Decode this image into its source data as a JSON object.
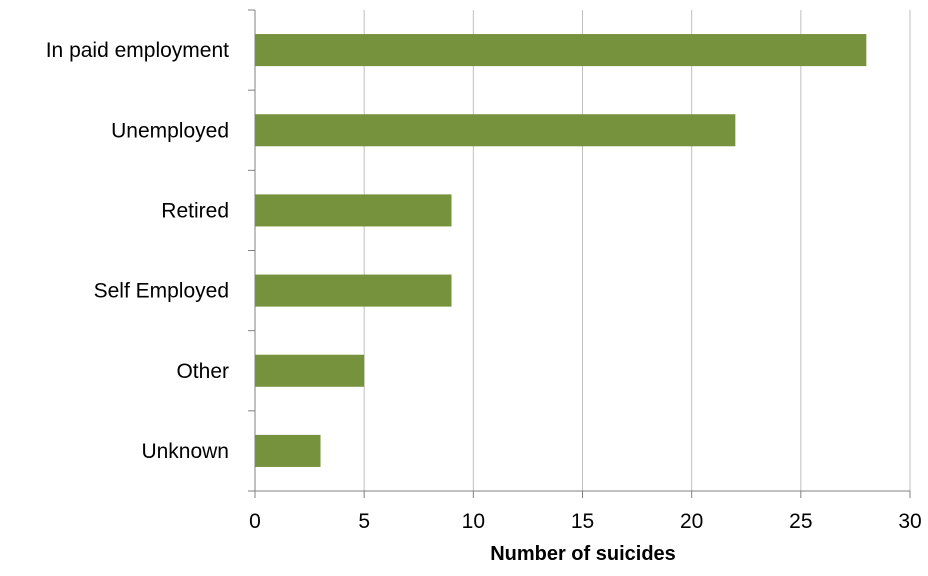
{
  "chart_data": {
    "type": "bar",
    "orientation": "horizontal",
    "categories": [
      "In paid employment",
      "Unemployed",
      "Retired",
      "Self Employed",
      "Other",
      "Unknown"
    ],
    "values": [
      28,
      22,
      9,
      9,
      5,
      3
    ],
    "title": "",
    "xlabel": "Number of suicides",
    "ylabel": "",
    "xlim": [
      0,
      30
    ],
    "xticks": [
      0,
      5,
      10,
      15,
      20,
      25,
      30
    ],
    "xtick_labels": [
      "0",
      "5",
      "10",
      "15",
      "20",
      "25",
      "30"
    ],
    "grid": "vertical",
    "legend": "none",
    "bar_color": "#76923C",
    "grid_color": "#BFBFBF",
    "axis_color": "#808080"
  }
}
